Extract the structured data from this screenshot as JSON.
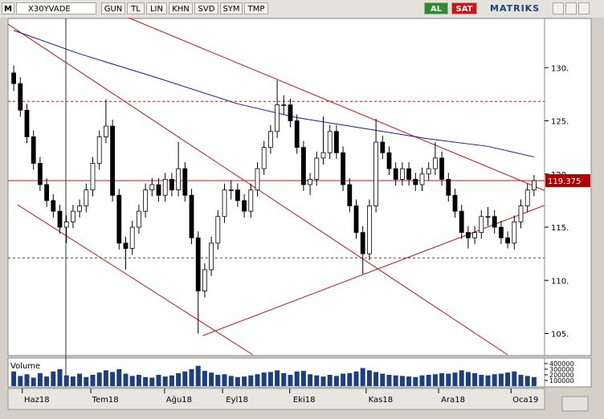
{
  "toolbar": {
    "logo": "M",
    "symbol": "X30YVADE",
    "buttons": [
      "GUN",
      "TL",
      "LIN",
      "KHN",
      "SVD",
      "SYM",
      "TMP"
    ],
    "buy": "AL",
    "sell": "SAT",
    "brand": "MATRIKS"
  },
  "chart_data": {
    "type": "candlestick",
    "open": [
      129.5,
      128.5,
      126,
      123.5,
      121,
      119,
      117.5,
      116.5,
      115,
      115.5,
      116.5,
      117,
      118.5,
      121,
      123.5,
      124.5,
      118,
      113.5,
      113,
      115,
      116.5,
      118.5,
      119,
      118,
      119.5,
      118.5,
      120.5,
      118,
      114,
      109,
      111,
      113.5,
      116,
      118.5,
      118.5,
      117.5,
      116.5,
      118.5,
      120.5,
      122.5,
      124,
      126.5,
      126.5,
      125,
      122.5,
      119,
      119.5,
      121.5,
      122,
      124,
      122,
      119,
      117,
      114.5,
      112.5,
      117,
      123,
      122,
      120.5,
      119.5,
      120.5,
      119.5,
      119,
      120,
      120.5,
      121.5,
      119.5,
      118,
      116.5,
      114.5,
      114,
      114.5,
      116,
      116,
      115,
      114,
      113.5,
      115.5,
      117,
      118.5
    ],
    "high": [
      130.2,
      129.1,
      126.6,
      124.1,
      121.6,
      119.6,
      118.1,
      117.1,
      116.1,
      117.1,
      117.6,
      119.1,
      121.6,
      124.1,
      127,
      125.1,
      118.6,
      114.1,
      115.6,
      117.1,
      119.1,
      119.6,
      119.6,
      120.1,
      120.1,
      123,
      121.1,
      118.6,
      114.6,
      111.6,
      114.1,
      116.6,
      119.1,
      119.4,
      119.1,
      118.1,
      119.1,
      121.1,
      123.1,
      124.6,
      128.8,
      127.4,
      127.1,
      125.6,
      123.1,
      120.1,
      122.1,
      125.4,
      124.6,
      124.6,
      122.6,
      119.6,
      117.6,
      115.1,
      117.6,
      125.2,
      123.6,
      122.6,
      121.1,
      121.1,
      121.1,
      120.1,
      120.6,
      121.1,
      123,
      122.1,
      120.1,
      118.6,
      117.1,
      115.1,
      115.1,
      116.6,
      116.9,
      116.6,
      115.6,
      114.6,
      116.1,
      117.6,
      119.1,
      119.9
    ],
    "low": [
      127.8,
      125.4,
      122.9,
      120.4,
      118.4,
      116.9,
      115.9,
      114.4,
      113.5,
      114.9,
      115.9,
      116.4,
      117.9,
      120.4,
      122.9,
      117.4,
      112.9,
      111,
      112.4,
      114.4,
      115.9,
      117.9,
      117.4,
      117.4,
      117.9,
      117.9,
      117.4,
      113.4,
      105,
      108.4,
      110.4,
      112.9,
      115.4,
      117.6,
      116.9,
      115.9,
      115.9,
      117.9,
      119.9,
      121.9,
      123.4,
      125.6,
      124.4,
      121.9,
      118.4,
      118,
      118.9,
      120.9,
      121.4,
      121.4,
      118.4,
      116.4,
      113.9,
      110.6,
      111.9,
      116.4,
      121.4,
      119.9,
      118.9,
      118.9,
      118.9,
      118.4,
      118.4,
      119.4,
      119.9,
      118.9,
      117.4,
      115.9,
      113.9,
      113,
      113.4,
      113.9,
      115.1,
      114.4,
      113.4,
      113,
      112.9,
      114.9,
      116.4,
      117.9
    ],
    "close": [
      128.5,
      126,
      123.5,
      121,
      119,
      117.5,
      116.5,
      115,
      115.5,
      116.5,
      117,
      118.5,
      121,
      123.5,
      124.5,
      118,
      113.5,
      113,
      115,
      116.5,
      118.5,
      119,
      118,
      119.5,
      118.5,
      120.5,
      118,
      114,
      109,
      111,
      113.5,
      116,
      118.5,
      118.5,
      117.5,
      116.5,
      118.5,
      120.5,
      122.5,
      124,
      126.5,
      126.5,
      125,
      122.5,
      119,
      119.5,
      121.5,
      122,
      124,
      122,
      119,
      117,
      114.5,
      112.5,
      117,
      123,
      122,
      120.5,
      119.5,
      120.5,
      119.5,
      119,
      120,
      120.5,
      121.5,
      119.5,
      118,
      116.5,
      114.5,
      114,
      114.5,
      116,
      116,
      115,
      114,
      113.5,
      115.5,
      117,
      118.5,
      119.375
    ],
    "volume": [
      260000,
      180000,
      210000,
      150000,
      230000,
      170000,
      260000,
      300000,
      190000,
      170000,
      220000,
      160000,
      200000,
      240000,
      280000,
      250000,
      300000,
      220000,
      180000,
      200000,
      160000,
      150000,
      200000,
      170000,
      190000,
      230000,
      260000,
      300000,
      360000,
      270000,
      240000,
      200000,
      210000,
      180000,
      160000,
      170000,
      190000,
      210000,
      240000,
      250000,
      280000,
      230000,
      200000,
      260000,
      270000,
      210000,
      190000,
      170000,
      200000,
      180000,
      220000,
      230000,
      260000,
      320000,
      280000,
      250000,
      220000,
      200000,
      190000,
      180000,
      170000,
      160000,
      190000,
      200000,
      210000,
      230000,
      220000,
      240000,
      280000,
      250000,
      230000,
      200000,
      190000,
      210000,
      220000,
      240000,
      260000,
      200000,
      180000,
      160000
    ],
    "up_color": "#ffffff",
    "down_color": "#000000",
    "volume_color": "#1c3f82",
    "volume_label": "Volume",
    "vylim": [
      0,
      470000
    ],
    "vyticks": [
      100000,
      200000,
      300000,
      400000
    ],
    "xlim": [
      -0.5,
      79.5
    ],
    "xticks": [
      {
        "value": 3.5,
        "label": "Haz18"
      },
      {
        "value": 13.9,
        "label": "Tem18"
      },
      {
        "value": 25.1,
        "label": "Ağu18"
      },
      {
        "value": 33.9,
        "label": "Eyl18"
      },
      {
        "value": 44.1,
        "label": "Eki18"
      },
      {
        "value": 55.7,
        "label": "Kas18"
      },
      {
        "value": 66.7,
        "label": "Ara18"
      },
      {
        "value": 77.7,
        "label": "Oca19"
      }
    ],
    "ylim": [
      103,
      134.7
    ],
    "yticks": [
      {
        "value": 105,
        "label": "105."
      },
      {
        "value": 110,
        "label": "110."
      },
      {
        "value": 115,
        "label": "115."
      },
      {
        "value": 120,
        "label": "120."
      },
      {
        "value": 125,
        "label": "125."
      },
      {
        "value": 130,
        "label": "130."
      }
    ],
    "last": 119.375,
    "last_color": "#b00000",
    "ma": {
      "color": "#1a1a8c",
      "x": [
        0,
        10,
        22,
        34,
        43,
        53,
        63,
        72,
        79
      ],
      "values": [
        133.5,
        131.3,
        129,
        126.6,
        125.3,
        124.3,
        123.3,
        122.6,
        121.6
      ]
    },
    "levels": [
      126.83,
      112.11
    ],
    "line_color": "#c0181c",
    "trendlines": [
      {
        "x": [
          -0.9,
          75.0
        ],
        "values": [
          134.1,
          103.0
        ]
      },
      {
        "x": [
          0.6,
          36.3
        ],
        "values": [
          117.1,
          103.0
        ]
      },
      {
        "x": [
          17.4,
          80.8
        ],
        "values": [
          134.7,
          118.4
        ]
      },
      {
        "x": [
          28.7,
          80.8
        ],
        "values": [
          104.8,
          117.1
        ]
      }
    ]
  }
}
